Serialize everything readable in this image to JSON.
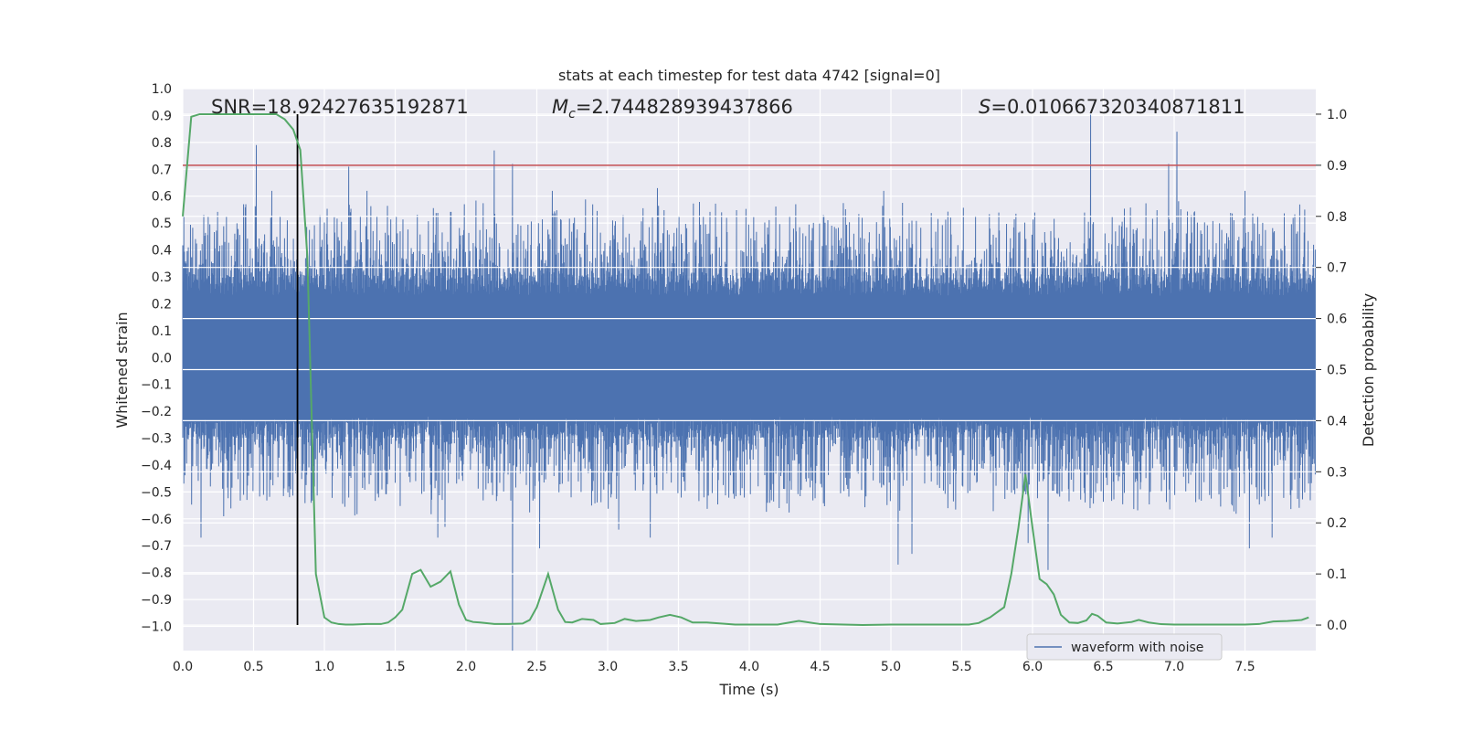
{
  "chart_data": {
    "type": "line",
    "title": "stats at each timestep for test data 4742 [signal=0]",
    "xlabel": "Time (s)",
    "ylabel": "Whitened strain",
    "y2label": "Detection probability",
    "xlim": [
      0.0,
      8.0
    ],
    "ylim": [
      -1.09,
      1.0
    ],
    "y2lim": [
      -0.05,
      1.05
    ],
    "x_ticks": [
      0.0,
      0.5,
      1.0,
      1.5,
      2.0,
      2.5,
      3.0,
      3.5,
      4.0,
      4.5,
      5.0,
      5.5,
      6.0,
      6.5,
      7.0,
      7.5
    ],
    "x_tick_labels": [
      "0.0",
      "0.5",
      "1.0",
      "1.5",
      "2.0",
      "2.5",
      "3.0",
      "3.5",
      "4.0",
      "4.5",
      "5.0",
      "5.5",
      "6.0",
      "6.5",
      "7.0",
      "7.5"
    ],
    "y_ticks": [
      1.0,
      0.9,
      0.8,
      0.7,
      0.6,
      0.5,
      0.4,
      0.3,
      0.2,
      0.1,
      0.0,
      -0.1,
      -0.2,
      -0.3,
      -0.4,
      -0.5,
      -0.6,
      -0.7,
      -0.8,
      -0.9,
      -1.0
    ],
    "y_tick_labels": [
      "1.0",
      "0.9",
      "0.8",
      "0.7",
      "0.6",
      "0.5",
      "0.4",
      "0.3",
      "0.2",
      "0.1",
      "0.0",
      "−0.1",
      "−0.2",
      "−0.3",
      "−0.4",
      "−0.5",
      "−0.6",
      "−0.7",
      "−0.8",
      "−0.9",
      "−1.0"
    ],
    "y2_ticks": [
      1.0,
      0.9,
      0.8,
      0.7,
      0.6,
      0.5,
      0.4,
      0.3,
      0.2,
      0.1,
      0.0
    ],
    "y2_tick_labels": [
      "1.0",
      "0.9",
      "0.8",
      "0.7",
      "0.6",
      "0.5",
      "0.4",
      "0.3",
      "0.2",
      "0.1",
      "0.0"
    ],
    "annotations": {
      "snr": "SNR=18.92427635192871",
      "mc_symbol": "M",
      "mc_subscript": "c",
      "mc_value": "=2.744828939437866",
      "s_symbol": "S",
      "s_value": "=0.010667320340871811"
    },
    "threshold": {
      "y2": 0.9,
      "color": "#c44e52"
    },
    "vertical_marker": {
      "x": 0.81,
      "color": "#000000"
    },
    "grid": true,
    "legend": {
      "position": "bottom-right",
      "entries": [
        {
          "label": "waveform with noise",
          "color": "#4c72b0"
        }
      ]
    },
    "series": [
      {
        "name": "waveform with noise",
        "color": "#4c72b0",
        "axis": "left",
        "style": "noise-band",
        "duration": 8.0,
        "samples": 2048,
        "dense_upper": 0.27,
        "dense_lower": -0.26,
        "spike_peaks": [
          [
            0.52,
            0.79
          ],
          [
            0.63,
            0.62
          ],
          [
            0.15,
            0.53
          ],
          [
            1.17,
            0.71
          ],
          [
            1.3,
            0.62
          ],
          [
            2.2,
            0.77
          ],
          [
            2.33,
            0.72
          ],
          [
            2.61,
            0.62
          ],
          [
            3.35,
            0.63
          ],
          [
            4.95,
            0.62
          ],
          [
            6.41,
            0.91
          ],
          [
            7.02,
            0.84
          ],
          [
            6.96,
            0.72
          ],
          [
            7.5,
            0.62
          ],
          [
            7.92,
            0.55
          ]
        ],
        "spike_troughs": [
          [
            0.13,
            -0.67
          ],
          [
            2.33,
            -1.09
          ],
          [
            2.52,
            -0.71
          ],
          [
            1.85,
            -0.63
          ],
          [
            1.8,
            -0.67
          ],
          [
            3.08,
            -0.64
          ],
          [
            3.3,
            -0.67
          ],
          [
            5.05,
            -0.77
          ],
          [
            5.15,
            -0.73
          ],
          [
            5.97,
            -0.69
          ],
          [
            6.11,
            -0.79
          ],
          [
            7.53,
            -0.71
          ],
          [
            7.69,
            -0.67
          ]
        ]
      },
      {
        "name": "",
        "color": "#55a868",
        "axis": "right",
        "style": "line",
        "x": [
          0.0,
          0.06,
          0.12,
          0.2,
          0.3,
          0.4,
          0.5,
          0.6,
          0.66,
          0.72,
          0.78,
          0.83,
          0.88,
          0.94,
          1.0,
          1.05,
          1.1,
          1.15,
          1.2,
          1.3,
          1.4,
          1.45,
          1.5,
          1.55,
          1.62,
          1.68,
          1.75,
          1.82,
          1.89,
          1.95,
          2.0,
          2.05,
          2.1,
          2.2,
          2.3,
          2.4,
          2.45,
          2.5,
          2.58,
          2.65,
          2.7,
          2.75,
          2.82,
          2.9,
          2.95,
          3.05,
          3.12,
          3.2,
          3.3,
          3.36,
          3.44,
          3.52,
          3.6,
          3.7,
          3.8,
          3.9,
          4.0,
          4.2,
          4.35,
          4.5,
          4.8,
          5.0,
          5.2,
          5.4,
          5.55,
          5.62,
          5.7,
          5.8,
          5.85,
          5.9,
          5.95,
          6.0,
          6.05,
          6.1,
          6.15,
          6.2,
          6.26,
          6.32,
          6.38,
          6.42,
          6.46,
          6.52,
          6.6,
          6.7,
          6.75,
          6.82,
          6.9,
          7.0,
          7.1,
          7.3,
          7.5,
          7.6,
          7.7,
          7.8,
          7.9,
          7.95
        ],
        "y": [
          0.8,
          0.995,
          1.0,
          1.0,
          1.0,
          1.0,
          1.0,
          1.0,
          1.0,
          0.99,
          0.97,
          0.93,
          0.72,
          0.1,
          0.015,
          0.005,
          0.002,
          0.001,
          0.001,
          0.002,
          0.002,
          0.005,
          0.015,
          0.03,
          0.1,
          0.108,
          0.075,
          0.085,
          0.105,
          0.04,
          0.01,
          0.006,
          0.005,
          0.002,
          0.002,
          0.003,
          0.01,
          0.035,
          0.1,
          0.03,
          0.006,
          0.005,
          0.012,
          0.01,
          0.002,
          0.004,
          0.012,
          0.008,
          0.01,
          0.015,
          0.02,
          0.015,
          0.005,
          0.005,
          0.003,
          0.001,
          0.001,
          0.001,
          0.008,
          0.002,
          0.0,
          0.001,
          0.001,
          0.001,
          0.001,
          0.004,
          0.015,
          0.035,
          0.1,
          0.19,
          0.295,
          0.19,
          0.09,
          0.08,
          0.06,
          0.02,
          0.005,
          0.004,
          0.009,
          0.022,
          0.018,
          0.005,
          0.003,
          0.006,
          0.01,
          0.005,
          0.002,
          0.001,
          0.001,
          0.001,
          0.001,
          0.002,
          0.007,
          0.008,
          0.01,
          0.015
        ]
      }
    ]
  }
}
